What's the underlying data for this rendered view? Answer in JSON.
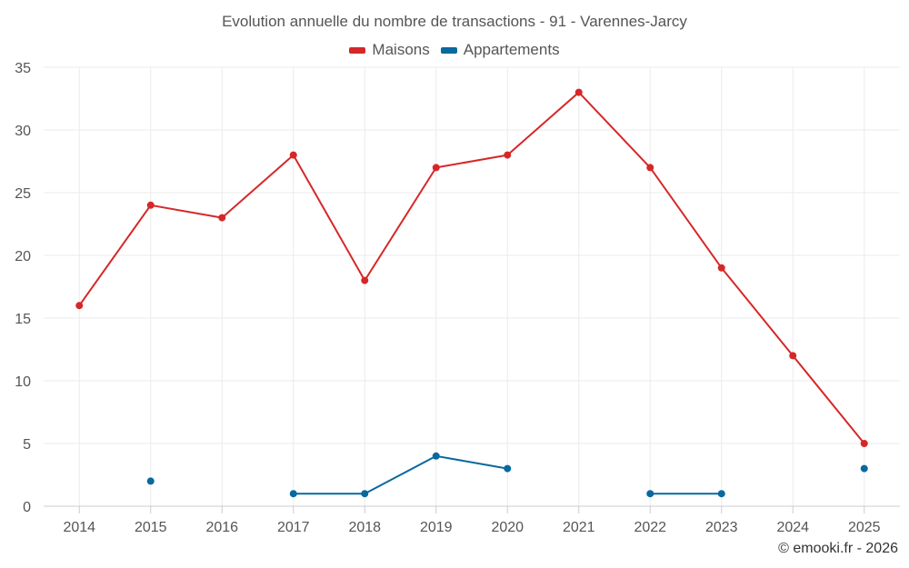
{
  "chart_data": {
    "type": "line",
    "title": "Evolution annuelle du nombre de transactions - 91 - Varennes-Jarcy",
    "xlabel": "",
    "ylabel": "",
    "categories": [
      "2014",
      "2015",
      "2016",
      "2017",
      "2018",
      "2019",
      "2020",
      "2021",
      "2022",
      "2023",
      "2024",
      "2025"
    ],
    "ylim": [
      0,
      35
    ],
    "yticks": [
      0,
      5,
      10,
      15,
      20,
      25,
      30,
      35
    ],
    "grid": true,
    "legend_position": "top-center",
    "series": [
      {
        "name": "Maisons",
        "color": "#d62728",
        "values": [
          16,
          24,
          23,
          28,
          18,
          27,
          28,
          33,
          27,
          19,
          12,
          5
        ]
      },
      {
        "name": "Appartements",
        "color": "#0868a0",
        "values": [
          null,
          2,
          null,
          1,
          1,
          4,
          3,
          null,
          1,
          1,
          null,
          3
        ]
      }
    ]
  },
  "credit": "© emooki.fr - 2026"
}
